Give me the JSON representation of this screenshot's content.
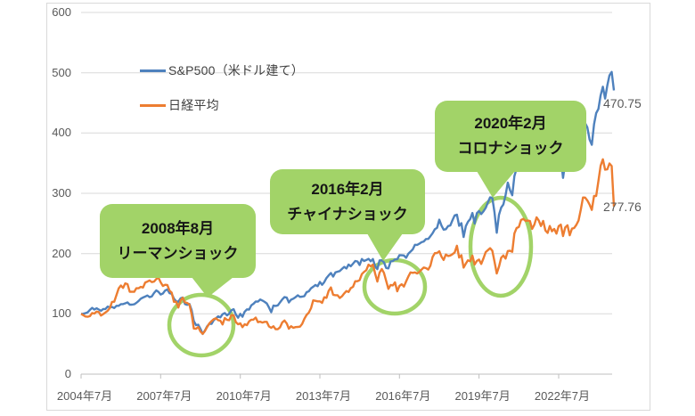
{
  "legend": {
    "items": [
      {
        "label": "S&P500（米ドル建て）",
        "color": "#4E81BD"
      },
      {
        "label": "日経平均",
        "color": "#ED7D31"
      }
    ]
  },
  "end_labels": {
    "sp500": "470.75",
    "nikkei": "277.76"
  },
  "chart_data": {
    "type": "line",
    "title": "",
    "xlabel": "",
    "ylabel": "",
    "ylim": [
      0,
      600
    ],
    "grid": "horizontal",
    "legend_position": "inside-top-left",
    "x_start": "2004-07",
    "x_interval": "monthly",
    "x_end": "2024-08",
    "x_tick_labels": [
      "2004年7月",
      "2007年7月",
      "2010年7月",
      "2013年7月",
      "2016年7月",
      "2019年7月",
      "2022年7月"
    ],
    "y_tick_labels": [
      "0",
      "100",
      "200",
      "300",
      "400",
      "500",
      "600"
    ],
    "annotations": [
      {
        "line1": "2008年8月",
        "line2": "リーマンショック"
      },
      {
        "line1": "2016年2月",
        "line2": "チャイナショック"
      },
      {
        "line1": "2020年2月",
        "line2": "コロナショック"
      }
    ],
    "end_value_labels": [
      470.75,
      277.76
    ],
    "series": [
      {
        "name": "S&P500（米ドル建て）",
        "color": "#4E81BD",
        "values": [
          100,
          100.2,
          101.2,
          102.6,
          106.5,
          110,
          107.2,
          109.2,
          107.2,
          105,
          108.1,
          108.1,
          112,
          110.8,
          111.5,
          109.6,
          113.4,
          113.3,
          116.2,
          116.2,
          117.5,
          119,
          115.3,
          115.3,
          115.9,
          118.3,
          121.3,
          125.1,
          127.1,
          128.7,
          130.5,
          127.7,
          129,
          134.6,
          138.9,
          136.5,
          132.1,
          133.8,
          138.6,
          140.6,
          134.4,
          133.3,
          125.1,
          120.8,
          120.1,
          125.8,
          127.1,
          116.2,
          115,
          116.4,
          105.9,
          87.9,
          81.3,
          82,
          75,
          66.7,
          72.4,
          79.2,
          83.4,
          83.4,
          89.6,
          92.6,
          95.9,
          94.1,
          99.4,
          101.2,
          97.5,
          100.3,
          106.1,
          107.7,
          98.9,
          93.6,
          100,
          95.2,
          103.6,
          107.4,
          107.2,
          114.2,
          116.7,
          120.5,
          120.3,
          123.8,
          122.1,
          119.9,
          117.3,
          110.6,
          102.7,
          113.8,
          113.2,
          114.1,
          119.1,
          124,
          127.8,
          126.9,
          118.9,
          123.6,
          125.2,
          127.7,
          130.8,
          128.2,
          128.5,
          129.5,
          136,
          137.5,
          142.4,
          145,
          148,
          145.8,
          153,
          148.2,
          152.6,
          159.4,
          163.9,
          167.8,
          161.8,
          168.8,
          170,
          171,
          174.6,
          177.9,
          175.2,
          181.8,
          179,
          183.2,
          187.7,
          186.9,
          181.1,
          191,
          187.7,
          189.3,
          191.3,
          187.3,
          191,
          179,
          174.3,
          188.7,
          188.8,
          185.5,
          176.1,
          175.4,
          187,
          187.5,
          190.3,
          190.5,
          197.3,
          197.1,
          196.8,
          193,
          199.6,
          203.2,
          206.9,
          214.6,
          214.5,
          216.4,
          218.9,
          220,
          224.2,
          224.3,
          228.7,
          233.8,
          240.3,
          242.7,
          256.3,
          246.3,
          239.7,
          240.4,
          245.6,
          246.7,
          255.6,
          263.4,
          264.5,
          246.1,
          250.5,
          227.5,
          245.4,
          252.7,
          257.3,
          267.4,
          249.8,
          267,
          270.5,
          265.6,
          270.2,
          275.7,
          285.1,
          293.2,
          292.8,
          268.1,
          234.6,
          264.4,
          276.3,
          281.4,
          296.9,
          317.7,
          305.2,
          296.8,
          328.7,
          340.9,
          337.1,
          345.9,
          360.6,
          379.5,
          381.6,
          390.1,
          398.9,
          410.5,
          391,
          418,
          414.5,
          432.6,
          409.9,
          397,
          411.2,
          375,
          375.1,
          343.6,
          374.9,
          359,
          325.5,
          351.4,
          370.3,
          348.5,
          370,
          360.4,
          373,
          378.5,
          379.4,
          403.9,
          416.5,
          409.2,
          389.2,
          380.6,
          414.6,
          433,
          439.9,
          462.6,
          476.9,
          457.1,
          479,
          495.6,
          501.3,
          470.75
        ]
      },
      {
        "name": "日経平均",
        "color": "#ED7D31",
        "values": [
          100,
          97.8,
          95.6,
          95.1,
          96.2,
          101.4,
          100.5,
          103.7,
          103,
          97.2,
          99.6,
          102.3,
          105.1,
          109.6,
          119.9,
          120.1,
          131.3,
          142.3,
          147,
          143.1,
          150.6,
          149.3,
          136.6,
          136.9,
          136.5,
          142.5,
          142.4,
          144.8,
          143.7,
          152.1,
          153.5,
          155.4,
          152.6,
          153.6,
          157.8,
          160.2,
          152.3,
          146.3,
          148.2,
          147.8,
          138.4,
          135.2,
          120,
          120.1,
          110.6,
          122.3,
          126.6,
          119,
          118.1,
          115.4,
          99.4,
          75.7,
          75.2,
          78.2,
          70.6,
          66.8,
          71.6,
          78,
          84.1,
          87.9,
          91.4,
          92.6,
          89.5,
          88.6,
          82.5,
          93.1,
          90,
          89.4,
          97.9,
          97.6,
          86.3,
          82.8,
          84.2,
          77.9,
          82.7,
          81.3,
          87.7,
          90.3,
          90.4,
          93.8,
          86.1,
          87,
          85.6,
          86.7,
          86.8,
          79.1,
          76.8,
          79.4,
          74.5,
          74.7,
          77.7,
          85.9,
          89,
          84.1,
          75.4,
          79.5,
          76.8,
          78.1,
          78.3,
          78.8,
          83.4,
          91.8,
          98.3,
          102.1,
          109.5,
          122.4,
          121.6,
          120.8,
          120.7,
          118.2,
          127.6,
          126.5,
          138.3,
          143.8,
          131.7,
          131,
          130.9,
          126.3,
          129.2,
          133.9,
          137.9,
          136.2,
          142.8,
          144.9,
          154.2,
          154.1,
          156.1,
          166,
          169.6,
          172.4,
          181.6,
          178.7,
          181.7,
          166.8,
          153.5,
          168.5,
          174.4,
          168.1,
          154.7,
          141.5,
          148,
          147.2,
          152.2,
          137.5,
          146.3,
          149.1,
          145.2,
          153.9,
          161.7,
          168.8,
          168.1,
          168.8,
          167,
          169.5,
          173.5,
          176.9,
          175.9,
          173.5,
          179.7,
          194.4,
          200.7,
          201,
          203.9,
          194.9,
          189.4,
          198.4,
          196,
          196.9,
          199.1,
          201.9,
          213,
          193.5,
          197.3,
          176.7,
          183.4,
          188.8,
          187.2,
          196.5,
          181.9,
          187.9,
          190,
          182.8,
          192.1,
          202.4,
          205.7,
          208.9,
          204.9,
          186.7,
          167,
          178.3,
          193.2,
          196.8,
          191.7,
          204.3,
          204.7,
          202.9,
          233.4,
          242.3,
          244.2,
          255.8,
          257.6,
          254.4,
          254.8,
          254.2,
          240.9,
          248,
          260.1,
          255.1,
          245.7,
          254.2,
          238.4,
          234.2,
          245.7,
          237.1,
          240.9,
          233,
          245.5,
          248,
          229,
          243.6,
          247,
          230.4,
          241.3,
          242.3,
          247.6,
          254.8,
          272.7,
          293.1,
          292.9,
          288,
          281.3,
          272.5,
          295.7,
          295.5,
          320.4,
          345.8,
          356.4,
          339.1,
          339.8,
          349.5,
          345.2,
          277.76
        ]
      }
    ]
  }
}
